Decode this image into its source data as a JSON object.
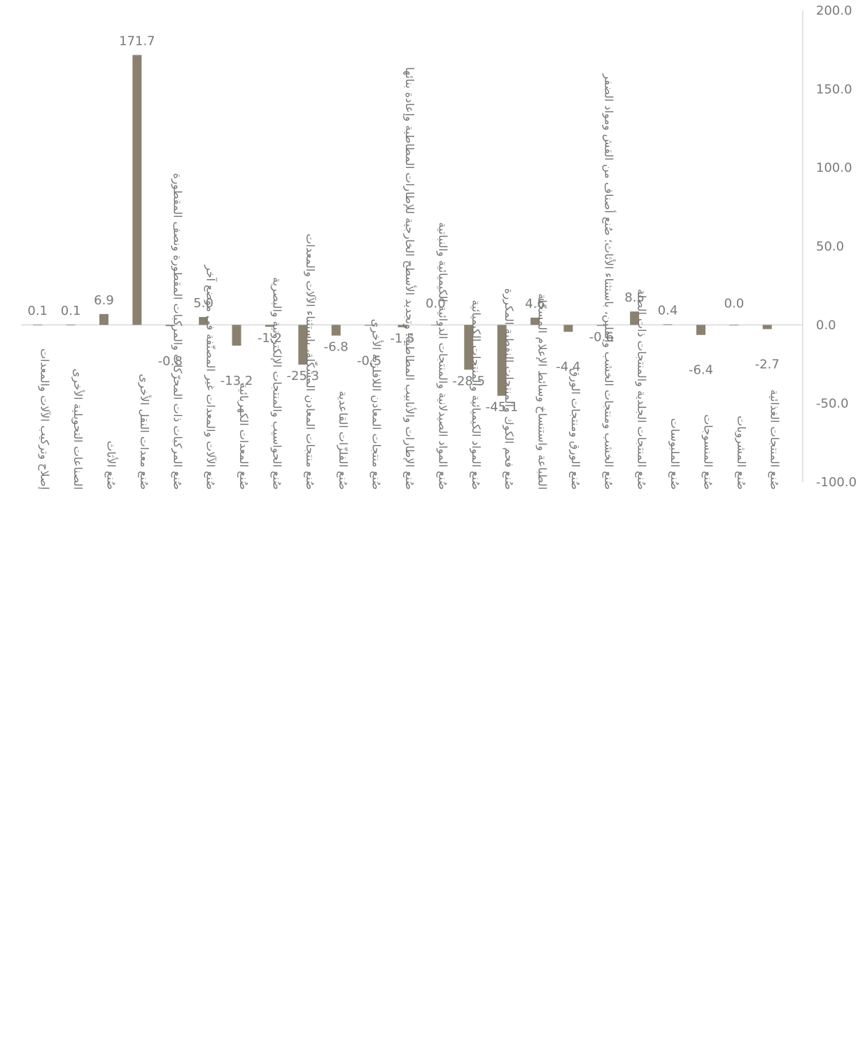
{
  "chart_data": {
    "type": "bar",
    "title": "",
    "xlabel": "",
    "ylabel": "",
    "ylim": [
      -100,
      200
    ],
    "yticks": [
      "200.0",
      "150.0",
      "100.0",
      "50.0",
      "0.0",
      "-50.0",
      "-100.0"
    ],
    "y_axis_side": "right",
    "category_direction": "right-to-left",
    "grid": false,
    "legend": "none",
    "bar_color": "#8b8170",
    "categories": [
      "صُنع المنتجات الغذائية",
      "صُنع المشروبات",
      "صُنع المنسوجات",
      "صُنع الملبوسات",
      "صُنع المنتجات الجلدية والمنتجات ذات الصلة",
      "صُنع الخشب ومنتجات الخشب والفلين، باستثناء الأثاث؛ صُنع أصناف من القش ومواد الضفر",
      "صُنع الورق ومنتجات الورق",
      "الطباعة واستنساخ وسائط الإعلام المسجّلة",
      "صُنع فحم الكوك والمنتجات النفطية المكررة",
      "صُنع المواد الكيميائية والمنتجات الكيميائية",
      "صُنع المواد الصيدلانية والمنتجات الدوائية الكيميائية والنباتية",
      "صُنع الإطارات والأنابيب المطاطية؛ وتجديد الأسطح الخارجية للإطارات المطاطية وإعادة بنائها",
      "صُنع منتجات المعادن اللافلزية الأخرى",
      "صُنع الفلزّات القاعدية",
      "صُنع منتجات المعادن المشكّلة، باستثناء الآلات والمعدات",
      "صُنع الحواسيب والمنتجات الإلكترونية والبصرية",
      "صُنع المعدات الكهربائية",
      "صُنع الآلات والمعدات غير المصنّفة في موضع آخر",
      "صُنع المركبات ذات المحرّكات والمركبات المقطورة ونصف المقطورة",
      "صُنع معدات النقل الأخرى",
      "صُنع الأثاث",
      "الصناعات التحويلية الأخرى",
      "إصلاح وتركيب الآلات والمعدات"
    ],
    "values": [
      -2.7,
      0.0,
      -6.4,
      0.4,
      8.5,
      -0.6,
      -4.4,
      4.6,
      -45.1,
      -28.5,
      0.0,
      -1.5,
      -0.5,
      -6.8,
      -25.3,
      -1.2,
      -13.2,
      5.0,
      -0.8,
      171.7,
      6.9,
      0.1,
      0.1
    ],
    "data_labels": [
      "-2.7",
      "0.0",
      "-6.4",
      "0.4",
      "8.5",
      "-0.6",
      "-4.4",
      "4.6",
      "-45.1",
      "-28.5",
      "0.0",
      "-1.5",
      "-0.5",
      "-6.8",
      "-25.3",
      "-1.2",
      "-13.2",
      "5.0",
      "-0.8",
      "171.7",
      "6.9",
      "0.1",
      "0.1"
    ]
  }
}
